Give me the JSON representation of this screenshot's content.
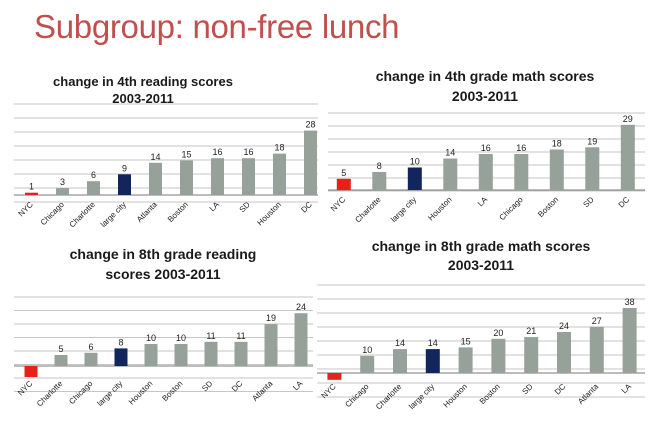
{
  "slide": {
    "title": "Subgroup: non-free lunch"
  },
  "colors": {
    "highlight_nyc": "#e8201b",
    "highlight_large_city": "#13265c",
    "bar_default": "#95a199",
    "title_red": "#c0504d"
  },
  "chart_data": [
    {
      "type": "bar",
      "title_lines": [
        "change in 4th reading scores",
        "2003-2011"
      ],
      "categories": [
        "NYC",
        "Chicago",
        "Charlotte",
        "large city",
        "Atlanta",
        "Boston",
        "LA",
        "SD",
        "Houston",
        "DC"
      ],
      "values": [
        1,
        3,
        6,
        9,
        14,
        15,
        16,
        16,
        18,
        28
      ],
      "ylim": [
        0,
        30
      ],
      "grid": true
    },
    {
      "type": "bar",
      "title_lines": [
        "change in 4th grade math scores",
        "2003-2011"
      ],
      "categories": [
        "NYC",
        "Charlotte",
        "large city",
        "Houston",
        "LA",
        "Chicago",
        "Boston",
        "SD",
        "DC"
      ],
      "values": [
        5,
        8,
        10,
        14,
        16,
        16,
        18,
        19,
        29
      ],
      "ylim": [
        0,
        30
      ],
      "grid": true
    },
    {
      "type": "bar",
      "title_lines": [
        "change in 8th grade reading",
        "scores 2003-2011"
      ],
      "categories": [
        "NYC",
        "Charlotte",
        "Chicago",
        "large city",
        "Houston",
        "Boston",
        "SD",
        "DC",
        "Atlanta",
        "LA"
      ],
      "values": [
        -5,
        5,
        6,
        8,
        10,
        10,
        11,
        11,
        19,
        24
      ],
      "ylim": [
        -7,
        25
      ],
      "grid": true
    },
    {
      "type": "bar",
      "title_lines": [
        "change in 8th grade math scores",
        "2003-2011"
      ],
      "categories": [
        "NYC",
        "Chicago",
        "Charlotte",
        "large city",
        "Houston",
        "Boston",
        "SD",
        "DC",
        "Atlanta",
        "LA"
      ],
      "values": [
        -4,
        10,
        14,
        14,
        15,
        20,
        21,
        24,
        27,
        38
      ],
      "ylim": [
        -7,
        40
      ],
      "grid": true
    }
  ]
}
